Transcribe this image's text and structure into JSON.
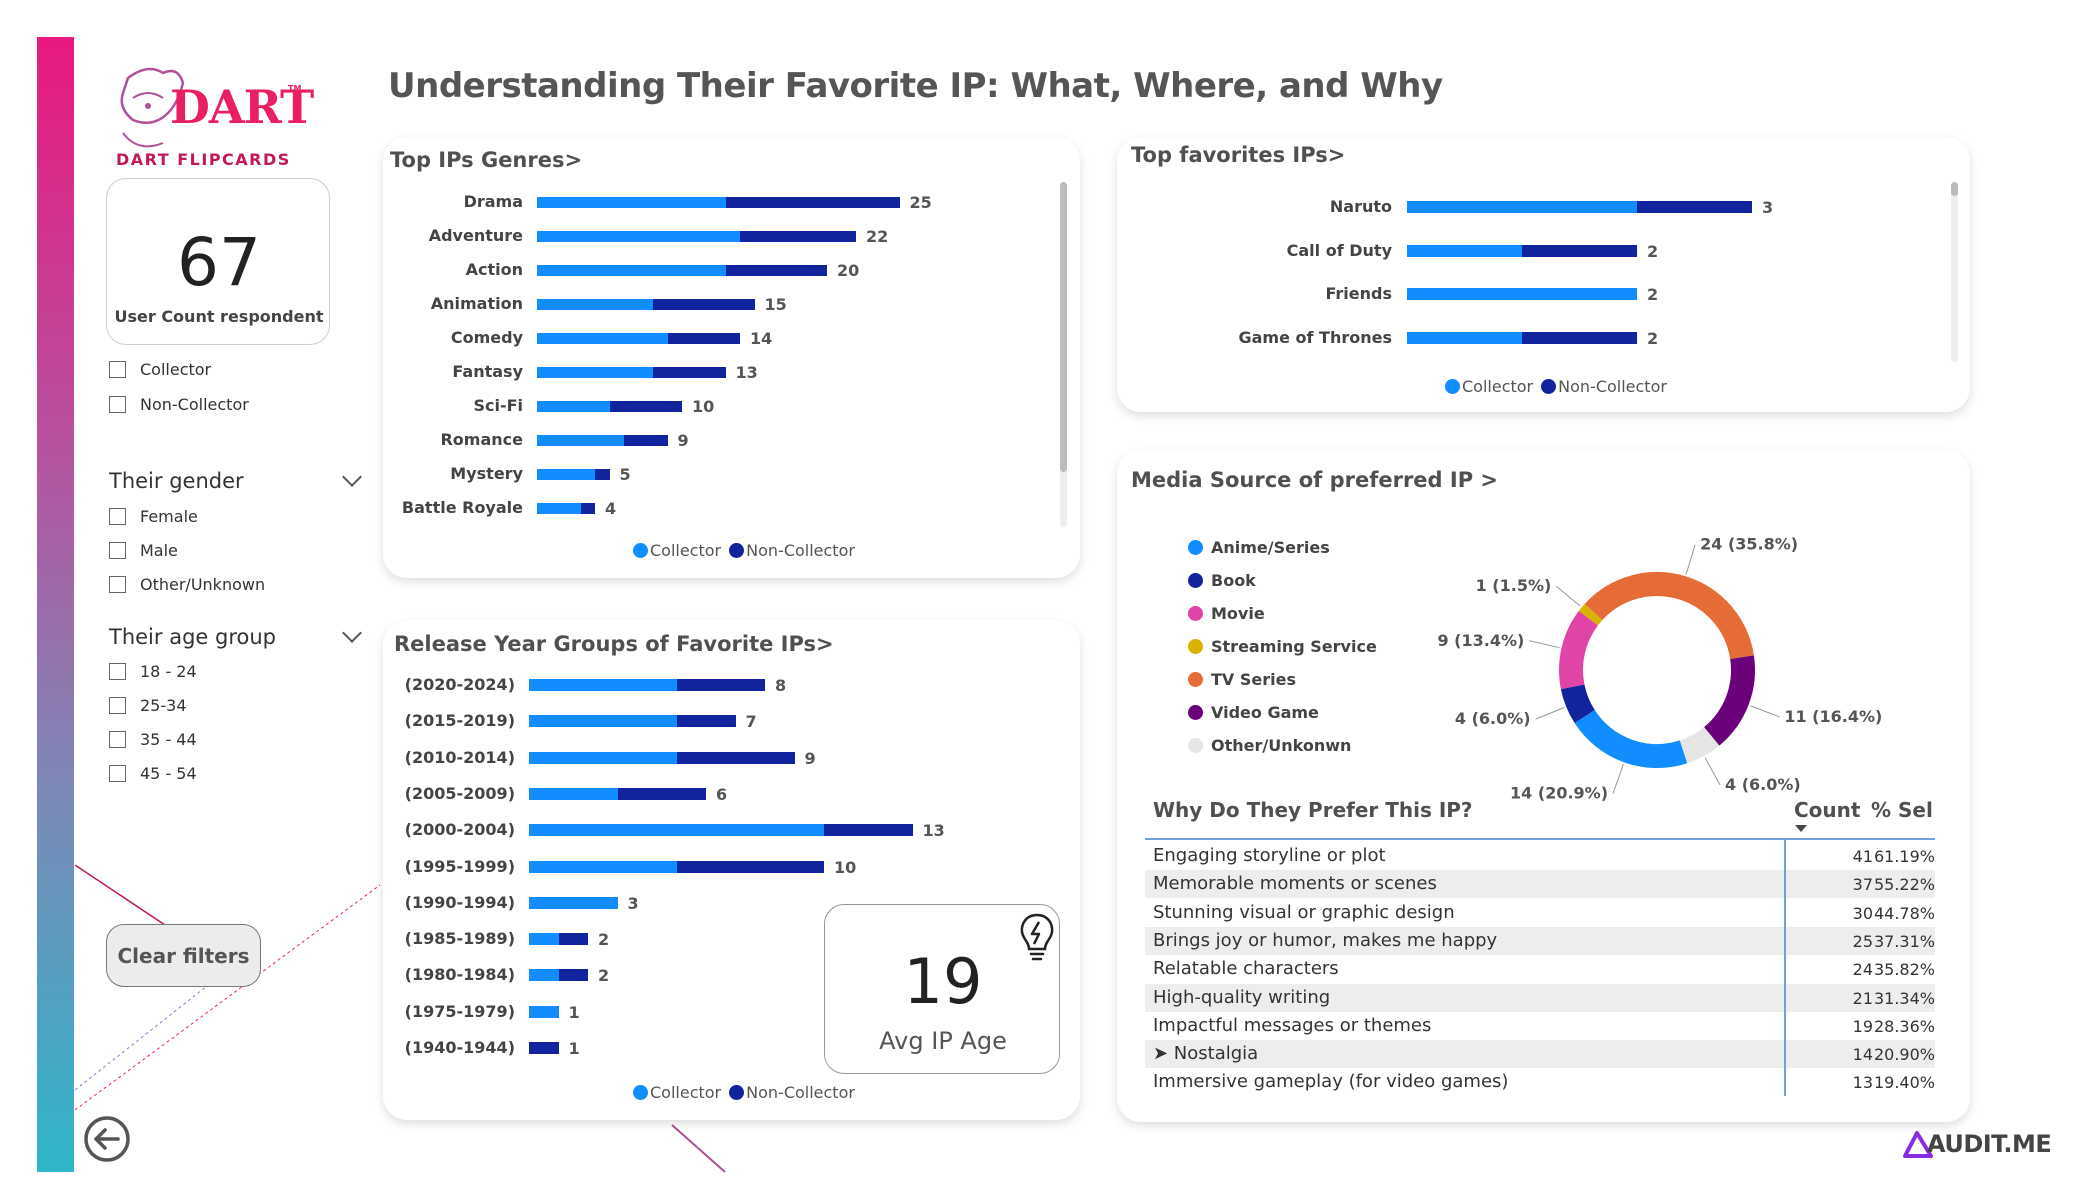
{
  "page_title": "Understanding Their Favorite IP: What, Where, and Why",
  "brand": {
    "logo_text": "DART",
    "tm": "TM",
    "subtitle": "DART FLIPCARDS",
    "watermark": "AUDIT.ME"
  },
  "kpi_user": {
    "value": "67",
    "label": "User Count respondent"
  },
  "kpi_age": {
    "value": "19",
    "label": "Avg IP Age"
  },
  "filters": {
    "collector_options": [
      "Collector",
      "Non-Collector"
    ],
    "gender_title": "Their gender",
    "gender_options": [
      "Female",
      "Male",
      "Other/Unknown"
    ],
    "age_title": "Their age group",
    "age_options": [
      "18 - 24",
      "25-34",
      "35 - 44",
      "45 - 54"
    ],
    "clear_label": "Clear filters"
  },
  "colors": {
    "collector": "#118dff",
    "non_collector": "#12239e"
  },
  "legend": {
    "collector": "Collector",
    "non_collector": "Non-Collector"
  },
  "chart_data": [
    {
      "type": "bar",
      "title": "Top IPs Genres>",
      "categories": [
        "Drama",
        "Adventure",
        "Action",
        "Animation",
        "Comedy",
        "Fantasy",
        "Sci-Fi",
        "Romance",
        "Mystery",
        "Battle Royale"
      ],
      "totals": [
        "25",
        "22",
        "20",
        "15",
        "14",
        "13",
        "10",
        "9",
        "5",
        "4"
      ],
      "series": [
        {
          "name": "Collector",
          "values": [
            13,
            14,
            13,
            8,
            9,
            8,
            5,
            6,
            4,
            3
          ]
        },
        {
          "name": "Non-Collector",
          "values": [
            12,
            8,
            7,
            7,
            5,
            5,
            5,
            3,
            1,
            1
          ]
        }
      ]
    },
    {
      "type": "bar",
      "title": "Top favorites IPs>",
      "categories": [
        "Naruto",
        "Call of Duty",
        "Friends",
        "Game of Thrones"
      ],
      "totals": [
        "3",
        "2",
        "2",
        "2"
      ],
      "series": [
        {
          "name": "Collector",
          "values": [
            2,
            1,
            2,
            1
          ]
        },
        {
          "name": "Non-Collector",
          "values": [
            1,
            1,
            0,
            1
          ]
        }
      ]
    },
    {
      "type": "bar",
      "title": "Release Year Groups of Favorite IPs>",
      "categories": [
        "(2020-2024)",
        "(2015-2019)",
        "(2010-2014)",
        "(2005-2009)",
        "(2000-2004)",
        "(1995-1999)",
        "(1990-1994)",
        "(1985-1989)",
        "(1980-1984)",
        "(1975-1979)",
        "(1940-1944)"
      ],
      "totals": [
        "8",
        "7",
        "9",
        "6",
        "13",
        "10",
        "3",
        "2",
        "2",
        "1",
        "1"
      ],
      "series": [
        {
          "name": "Collector",
          "values": [
            5,
            5,
            5,
            3,
            10,
            5,
            3,
            1,
            1,
            1,
            0
          ]
        },
        {
          "name": "Non-Collector",
          "values": [
            3,
            2,
            4,
            3,
            3,
            5,
            0,
            1,
            1,
            0,
            1
          ]
        }
      ]
    },
    {
      "type": "pie",
      "title": "Media Source of preferred IP >",
      "labels": [
        "Anime/Series",
        "Book",
        "Movie",
        "Streaming Service",
        "TV Series",
        "Video Game",
        "Other/Unkonwn"
      ],
      "values": [
        14,
        4,
        9,
        1,
        24,
        11,
        4
      ],
      "data_labels": [
        "14 (20.9%)",
        "4 (6.0%)",
        "9 (13.4%)",
        "1 (1.5%)",
        "24 (35.8%)",
        "11 (16.4%)",
        "4 (6.0%)"
      ],
      "colors": [
        "#118dff",
        "#12239e",
        "#e044a7",
        "#d9b300",
        "#e66c37",
        "#6b007b",
        "#e6e6e6"
      ]
    }
  ],
  "table": {
    "title": "Why Do They Prefer This IP?",
    "col_count": "Count",
    "col_pct": "% Sel",
    "rows": [
      {
        "reason": "Engaging storyline or plot",
        "count": "41",
        "pct": "61.19%"
      },
      {
        "reason": "Memorable moments or scenes",
        "count": "37",
        "pct": "55.22%"
      },
      {
        "reason": "Stunning visual or graphic design",
        "count": "30",
        "pct": "44.78%"
      },
      {
        "reason": "Brings joy or humor, makes me happy",
        "count": "25",
        "pct": "37.31%"
      },
      {
        "reason": "Relatable characters",
        "count": "24",
        "pct": "35.82%"
      },
      {
        "reason": "High-quality writing",
        "count": "21",
        "pct": "31.34%"
      },
      {
        "reason": "Impactful messages or themes",
        "count": "19",
        "pct": "28.36%"
      },
      {
        "reason": "Nostalgia",
        "count": "14",
        "pct": "20.90%"
      },
      {
        "reason": "Immersive gameplay (for video games)",
        "count": "13",
        "pct": "19.40%"
      }
    ]
  }
}
